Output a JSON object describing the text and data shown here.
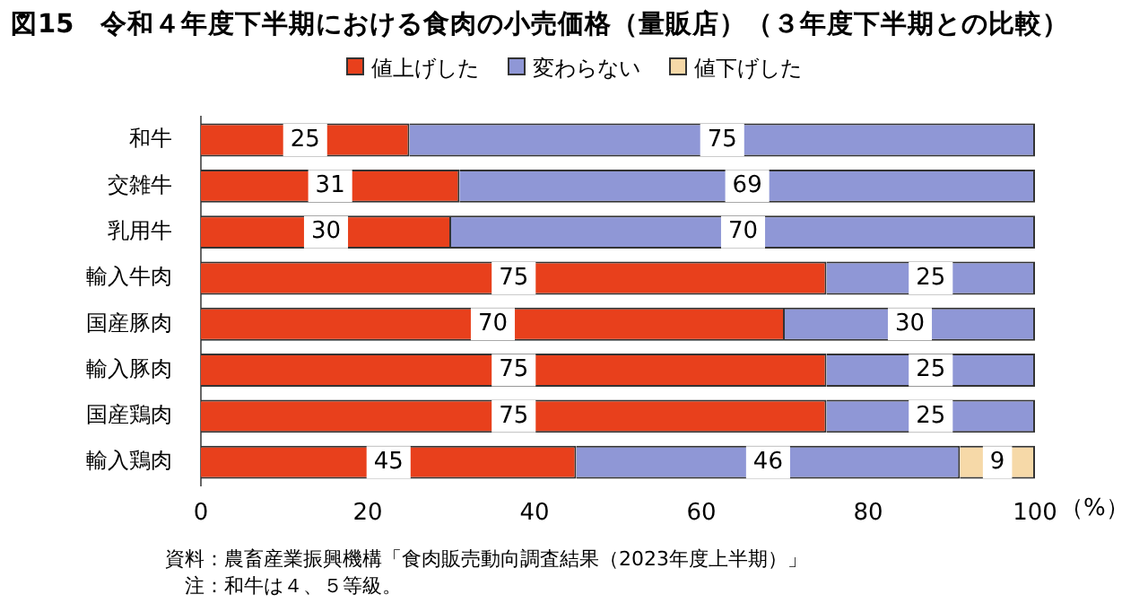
{
  "chart_data": {
    "type": "bar",
    "orientation": "horizontal",
    "stacked": true,
    "title": "図15　令和４年度下半期における食肉の小売価格（量販店）（３年度下半期との比較）",
    "categories": [
      "和牛",
      "交雑牛",
      "乳用牛",
      "輸入牛肉",
      "国産豚肉",
      "輸入豚肉",
      "国産鶏肉",
      "輸入鶏肉"
    ],
    "series": [
      {
        "name": "値上げした",
        "color": "#e8401c",
        "values": [
          25,
          31,
          30,
          75,
          70,
          75,
          75,
          45
        ]
      },
      {
        "name": "変わらない",
        "color": "#8f97d6",
        "values": [
          75,
          69,
          70,
          25,
          30,
          25,
          25,
          46
        ]
      },
      {
        "name": "値下げした",
        "color": "#f6d9a8",
        "values": [
          null,
          null,
          null,
          null,
          null,
          null,
          null,
          9
        ]
      }
    ],
    "xlim": [
      0,
      100
    ],
    "xticks": [
      0,
      20,
      40,
      60,
      80,
      100
    ],
    "xlabel": "（%）",
    "legend": "top",
    "grid": false,
    "data_labels": true,
    "annotations": [
      "資料：農畜産業振興機構「食肉販売動向調査結果（2023年度上半期）」",
      "　注：和牛は４、５等級。"
    ]
  }
}
